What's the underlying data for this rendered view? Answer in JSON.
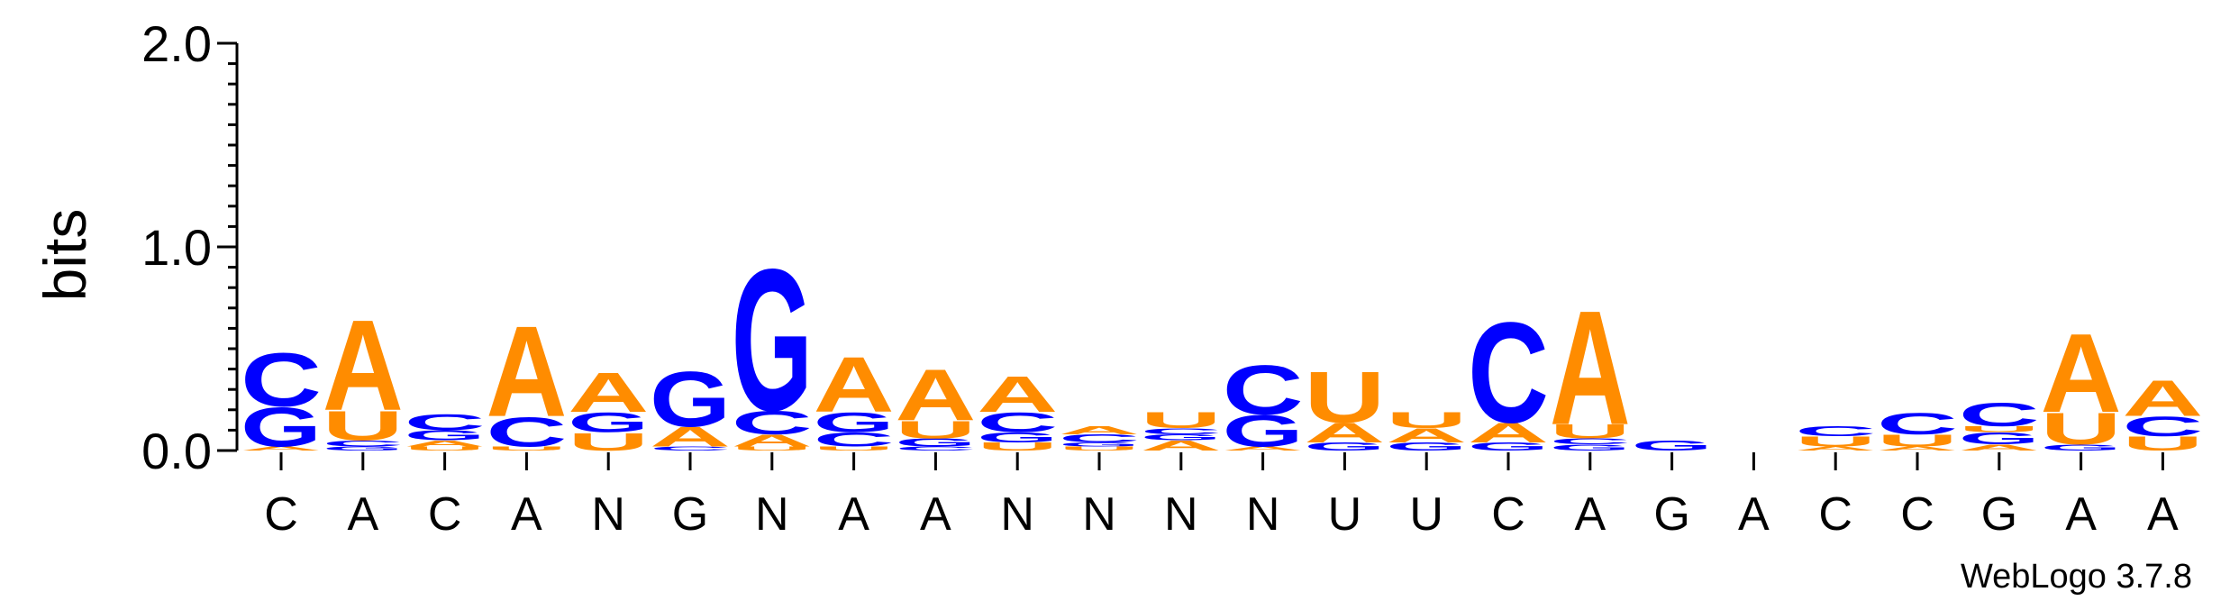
{
  "chart_data": {
    "type": "sequence_logo",
    "ylabel": "bits",
    "ylim": [
      0,
      2
    ],
    "yticks": [
      "0.0",
      "1.0",
      "2.0"
    ],
    "credit": "WebLogo 3.7.8",
    "colors": {
      "A": "#ff8c00",
      "U": "#ff8c00",
      "C": "#0000ff",
      "G": "#0000ff"
    },
    "positions": [
      {
        "label": "C",
        "stack": [
          [
            "A",
            0.02
          ],
          [
            "G",
            0.2
          ],
          [
            "C",
            0.27
          ]
        ]
      },
      {
        "label": "A",
        "stack": [
          [
            "G",
            0.02
          ],
          [
            "C",
            0.03
          ],
          [
            "U",
            0.15
          ],
          [
            "A",
            0.46
          ]
        ]
      },
      {
        "label": "C",
        "stack": [
          [
            "U",
            0.02
          ],
          [
            "A",
            0.03
          ],
          [
            "G",
            0.05
          ],
          [
            "C",
            0.08
          ]
        ]
      },
      {
        "label": "A",
        "stack": [
          [
            "U",
            0.02
          ],
          [
            "C",
            0.15
          ],
          [
            "A",
            0.46
          ]
        ]
      },
      {
        "label": "N",
        "stack": [
          [
            "U",
            0.09
          ],
          [
            "G",
            0.1
          ],
          [
            "A",
            0.2
          ]
        ]
      },
      {
        "label": "G",
        "stack": [
          [
            "C",
            0.02
          ],
          [
            "A",
            0.1
          ],
          [
            "G",
            0.28
          ]
        ]
      },
      {
        "label": "N",
        "stack": [
          [
            "U",
            0.02
          ],
          [
            "A",
            0.06
          ],
          [
            "C",
            0.12
          ],
          [
            "G",
            0.72
          ]
        ]
      },
      {
        "label": "A",
        "stack": [
          [
            "U",
            0.02
          ],
          [
            "C",
            0.07
          ],
          [
            "G",
            0.1
          ],
          [
            "A",
            0.28
          ]
        ]
      },
      {
        "label": "A",
        "stack": [
          [
            "C",
            0.02
          ],
          [
            "G",
            0.04
          ],
          [
            "U",
            0.09
          ],
          [
            "A",
            0.26
          ]
        ]
      },
      {
        "label": "N",
        "stack": [
          [
            "U",
            0.04
          ],
          [
            "G",
            0.05
          ],
          [
            "C",
            0.1
          ],
          [
            "A",
            0.18
          ]
        ]
      },
      {
        "label": "N",
        "stack": [
          [
            "U",
            0.02
          ],
          [
            "G",
            0.02
          ],
          [
            "C",
            0.04
          ],
          [
            "A",
            0.04
          ]
        ]
      },
      {
        "label": "N",
        "stack": [
          [
            "A",
            0.05
          ],
          [
            "G",
            0.03
          ],
          [
            "C",
            0.03
          ],
          [
            "U",
            0.08
          ]
        ]
      },
      {
        "label": "N",
        "stack": [
          [
            "A",
            0.02
          ],
          [
            "G",
            0.16
          ],
          [
            "C",
            0.25
          ]
        ]
      },
      {
        "label": "U",
        "stack": [
          [
            "G",
            0.04
          ],
          [
            "A",
            0.1
          ],
          [
            "U",
            0.26
          ]
        ]
      },
      {
        "label": "U",
        "stack": [
          [
            "G",
            0.04
          ],
          [
            "A",
            0.07
          ],
          [
            "U",
            0.08
          ]
        ]
      },
      {
        "label": "C",
        "stack": [
          [
            "G",
            0.04
          ],
          [
            "A",
            0.1
          ],
          [
            "C",
            0.51
          ]
        ]
      },
      {
        "label": "A",
        "stack": [
          [
            "G",
            0.03
          ],
          [
            "C",
            0.03
          ],
          [
            "U",
            0.07
          ],
          [
            "A",
            0.58
          ]
        ]
      },
      {
        "label": "G",
        "stack": [
          [
            "G",
            0.05
          ]
        ]
      },
      {
        "label": "A",
        "stack": []
      },
      {
        "label": "C",
        "stack": [
          [
            "A",
            0.02
          ],
          [
            "U",
            0.05
          ],
          [
            "C",
            0.05
          ]
        ]
      },
      {
        "label": "C",
        "stack": [
          [
            "A",
            0.02
          ],
          [
            "U",
            0.06
          ],
          [
            "C",
            0.11
          ]
        ]
      },
      {
        "label": "G",
        "stack": [
          [
            "A",
            0.03
          ],
          [
            "G",
            0.06
          ],
          [
            "U",
            0.03
          ],
          [
            "C",
            0.12
          ]
        ]
      },
      {
        "label": "A",
        "stack": [
          [
            "G",
            0.03
          ],
          [
            "U",
            0.16
          ],
          [
            "A",
            0.4
          ]
        ]
      },
      {
        "label": "A",
        "stack": [
          [
            "U",
            0.07
          ],
          [
            "C",
            0.1
          ],
          [
            "A",
            0.18
          ]
        ]
      }
    ]
  }
}
